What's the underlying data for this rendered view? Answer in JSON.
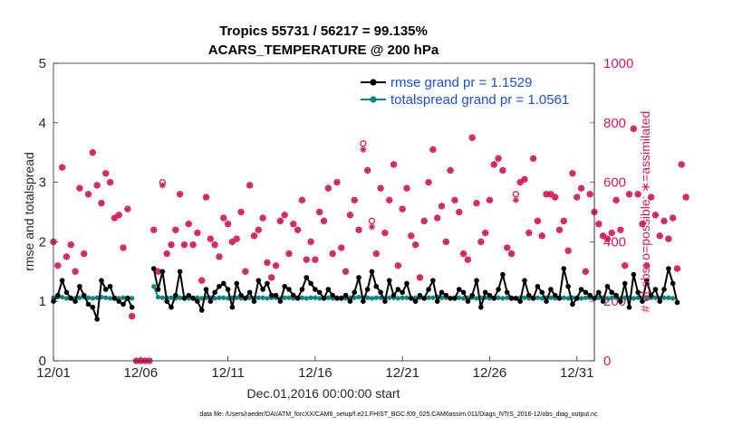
{
  "chart_data": {
    "type": "line",
    "title": "Tropics 55731 / 56217 = 99.135%",
    "subtitle": "ACARS_TEMPERATURE @ 200 hPa",
    "xlabel": "Dec.01,2016 00:00:00 start",
    "ylabel_left": "rmse and totalspread",
    "ylabel_right": "# of obs: o=possible; ∗=assimilated",
    "footnote": "data file: /Users/raeder/DAI/ATM_forcXX/CAM6_setup/f.e21.FHIST_BGC.f09_025.CAM6assim.011/Diags_NTrS_2016-12/obs_diag_output.nc",
    "x_ticks": [
      "12/01",
      "12/06",
      "12/11",
      "12/16",
      "12/21",
      "12/26",
      "12/31"
    ],
    "x_tick_days": [
      1,
      6,
      11,
      16,
      21,
      26,
      31
    ],
    "xlim": [
      1,
      32
    ],
    "ylim_left": [
      0,
      5
    ],
    "yticks_left": [
      "0",
      "1",
      "2",
      "3",
      "4",
      "5"
    ],
    "ylim_right": [
      0,
      1000
    ],
    "yticks_right": [
      "0",
      "200",
      "400",
      "600",
      "800",
      "1000"
    ],
    "legend": [
      "rmse grand pr = 1.1529",
      "totalspread grand pr = 1.0561"
    ],
    "colors": {
      "rmse": "#000000",
      "spread": "#0a8582",
      "obs": "#d6195a",
      "legend_text": "#1a4fd6"
    },
    "x_step": 0.25,
    "rmse": [
      1.0,
      1.1,
      1.35,
      1.15,
      1.05,
      1.0,
      1.25,
      1.1,
      0.95,
      0.9,
      0.7,
      1.35,
      1.2,
      1.25,
      1.05,
      1.0,
      0.95,
      1.05,
      0.9,
      null,
      null,
      null,
      null,
      1.55,
      1.2,
      1.5,
      1.0,
      0.9,
      1.1,
      1.5,
      1.05,
      1.1,
      1.05,
      1.0,
      0.85,
      1.2,
      1.0,
      1.15,
      1.25,
      1.3,
      1.2,
      0.9,
      1.3,
      1.1,
      1.05,
      1.15,
      1.0,
      1.35,
      1.2,
      1.3,
      1.1,
      1.1,
      1.0,
      1.25,
      1.2,
      1.1,
      1.05,
      1.2,
      1.4,
      1.3,
      1.2,
      1.15,
      1.05,
      1.2,
      1.1,
      1.05,
      1.05,
      1.1,
      1.0,
      1.15,
      1.4,
      1.0,
      1.2,
      1.5,
      1.25,
      1.15,
      1.0,
      1.35,
      1.1,
      1.2,
      1.15,
      1.3,
      1.05,
      1.0,
      1.1,
      1.05,
      1.2,
      1.35,
      1.0,
      1.15,
      1.1,
      1.05,
      1.05,
      1.2,
      1.15,
      1.0,
      1.1,
      1.35,
      0.9,
      1.15,
      1.1,
      1.05,
      1.2,
      1.45,
      1.15,
      1.05,
      1.05,
      1.0,
      1.35,
      1.1,
      1.05,
      1.25,
      1.15,
      1.0,
      1.2,
      1.1,
      1.05,
      1.55,
      1.25,
      0.95,
      1.05,
      1.2,
      1.15,
      1.1,
      1.05,
      1.15,
      1.0,
      1.25,
      1.15,
      1.1,
      1.0,
      1.3,
      0.9,
      1.45,
      1.15,
      1.0,
      1.35,
      1.1,
      1.2,
      1.0,
      1.2,
      1.55,
      1.3,
      0.98
    ],
    "spread": [
      1.06,
      1.07,
      1.07,
      1.05,
      1.06,
      1.05,
      1.06,
      1.07,
      1.06,
      1.05,
      1.06,
      1.07,
      1.06,
      1.05,
      1.06,
      1.05,
      1.06,
      1.06,
      1.05,
      null,
      null,
      null,
      null,
      1.25,
      1.07,
      1.06,
      1.06,
      1.06,
      1.05,
      1.06,
      1.06,
      1.05,
      1.06,
      1.06,
      1.05,
      1.06,
      1.06,
      1.05,
      1.06,
      1.06,
      1.05,
      1.06,
      1.06,
      1.05,
      1.06,
      1.06,
      1.05,
      1.06,
      1.06,
      1.05,
      1.06,
      1.06,
      1.05,
      1.06,
      1.06,
      1.05,
      1.06,
      1.06,
      1.05,
      1.06,
      1.06,
      1.05,
      1.06,
      1.06,
      1.05,
      1.06,
      1.06,
      1.05,
      1.06,
      1.06,
      1.07,
      1.06,
      1.06,
      1.05,
      1.06,
      1.06,
      1.05,
      1.06,
      1.06,
      1.05,
      1.06,
      1.06,
      1.05,
      1.06,
      1.06,
      1.05,
      1.06,
      1.06,
      1.08,
      1.06,
      1.06,
      1.05,
      1.06,
      1.06,
      1.05,
      1.06,
      1.06,
      1.05,
      1.06,
      1.06,
      1.05,
      1.06,
      1.06,
      1.05,
      1.06,
      1.06,
      1.05,
      1.06,
      1.06,
      1.05,
      1.06,
      1.06,
      1.05,
      1.06,
      1.06,
      1.05,
      1.06,
      1.06,
      1.05,
      1.06,
      1.06,
      1.05,
      1.06,
      1.06,
      1.05,
      1.06,
      1.06,
      1.05,
      1.06,
      1.06,
      1.05,
      1.06,
      1.06,
      1.05,
      1.06,
      1.06,
      1.05,
      1.06,
      1.06,
      1.05,
      1.06,
      1.06,
      1.05
    ],
    "obs_possible": [
      400,
      320,
      650,
      350,
      390,
      300,
      580,
      360,
      560,
      700,
      590,
      530,
      630,
      600,
      480,
      490,
      380,
      510,
      150,
      0,
      0,
      0,
      0,
      440,
      300,
      600,
      360,
      390,
      440,
      560,
      390,
      460,
      390,
      430,
      270,
      550,
      410,
      390,
      350,
      480,
      460,
      400,
      410,
      500,
      300,
      590,
      420,
      440,
      480,
      330,
      280,
      320,
      470,
      490,
      360,
      460,
      440,
      540,
      340,
      400,
      340,
      500,
      470,
      580,
      360,
      600,
      380,
      300,
      490,
      540,
      440,
      730,
      640,
      470,
      360,
      580,
      430,
      540,
      660,
      320,
      510,
      580,
      420,
      390,
      280,
      470,
      600,
      710,
      480,
      520,
      400,
      640,
      540,
      500,
      360,
      340,
      750,
      530,
      400,
      430,
      540,
      660,
      680,
      640,
      380,
      360,
      560,
      600,
      610,
      430,
      680,
      470,
      420,
      560,
      560,
      550,
      440,
      470,
      370,
      630,
      550,
      580,
      300,
      560,
      500,
      460,
      420,
      410,
      430,
      540,
      440,
      320,
      560,
      780,
      560,
      460,
      320,
      550,
      490,
      420,
      470,
      410,
      480,
      310,
      660,
      550
    ],
    "obs_assimilated": [
      400,
      320,
      650,
      350,
      390,
      300,
      580,
      360,
      560,
      700,
      590,
      530,
      630,
      600,
      480,
      490,
      380,
      510,
      150,
      0,
      0,
      0,
      0,
      440,
      300,
      590,
      360,
      390,
      440,
      560,
      390,
      460,
      390,
      430,
      270,
      550,
      410,
      390,
      350,
      480,
      460,
      400,
      410,
      500,
      300,
      590,
      420,
      440,
      480,
      330,
      280,
      320,
      470,
      490,
      360,
      460,
      440,
      540,
      340,
      400,
      340,
      500,
      470,
      580,
      360,
      600,
      380,
      300,
      490,
      540,
      440,
      710,
      640,
      450,
      360,
      580,
      430,
      540,
      660,
      320,
      510,
      580,
      420,
      390,
      280,
      470,
      600,
      710,
      480,
      520,
      400,
      640,
      540,
      500,
      360,
      340,
      750,
      530,
      400,
      430,
      540,
      660,
      680,
      640,
      380,
      360,
      540,
      600,
      610,
      430,
      680,
      470,
      420,
      560,
      560,
      550,
      440,
      470,
      370,
      630,
      550,
      580,
      300,
      560,
      500,
      460,
      420,
      410,
      430,
      540,
      440,
      320,
      560,
      780,
      560,
      460,
      320,
      550,
      490,
      420,
      470,
      410,
      480,
      310,
      660,
      550
    ]
  }
}
